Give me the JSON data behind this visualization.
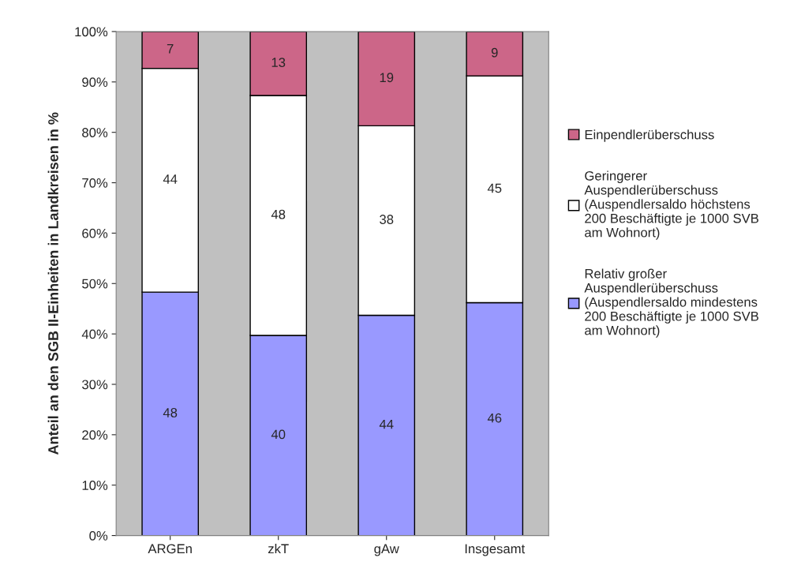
{
  "chart_data": {
    "type": "bar",
    "stacked": true,
    "ylabel": "Anteil an den SGB II-Einheiten in Landkreisen in %",
    "categories": [
      "ARGEn",
      "zkT",
      "gAw",
      "Insgesamt"
    ],
    "series": [
      {
        "name": "Relativ großer\nAuspendlerüberschuss\n(Auspendlersaldo mindestens\n200 Beschäftigte je 1000 SVB\nam Wohnort)",
        "color": "#9999ff",
        "values": [
          48.3,
          39.7,
          43.7,
          46.2
        ],
        "value_labels": [
          "48",
          "40",
          "44",
          "46"
        ]
      },
      {
        "name": "Geringerer\nAuspendlerüberschuss\n(Auspendlersaldo höchstens\n200 Beschäftigte je 1000 SVB\nam Wohnort)",
        "color": "#ffffff",
        "values": [
          44.4,
          47.6,
          37.6,
          45.0
        ],
        "value_labels": [
          "44",
          "48",
          "38",
          "45"
        ]
      },
      {
        "name": "Einpendlerüberschuss",
        "color": "#cc6688",
        "values": [
          7.3,
          12.7,
          18.7,
          8.8
        ],
        "value_labels": [
          "7",
          "13",
          "19",
          "9"
        ]
      }
    ],
    "ylim": [
      0,
      100
    ],
    "yticks": [
      {
        "value": 0,
        "label": "0%"
      },
      {
        "value": 10,
        "label": "10%"
      },
      {
        "value": 20,
        "label": "20%"
      },
      {
        "value": 30,
        "label": "30%"
      },
      {
        "value": 40,
        "label": "40%"
      },
      {
        "value": 50,
        "label": "50%"
      },
      {
        "value": 60,
        "label": "60%"
      },
      {
        "value": 70,
        "label": "70%"
      },
      {
        "value": 80,
        "label": "80%"
      },
      {
        "value": 90,
        "label": "90%"
      },
      {
        "value": 100,
        "label": "100%"
      }
    ],
    "grid": false,
    "legend": "right"
  }
}
